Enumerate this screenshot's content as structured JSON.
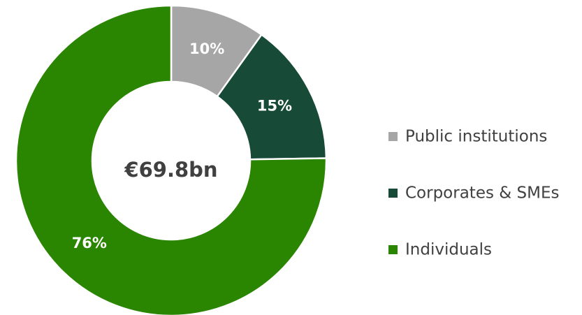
{
  "chart_data": {
    "type": "donut",
    "center_label": "€69.8bn",
    "categories": [
      "Public institutions",
      "Corporates & SMEs",
      "Individuals"
    ],
    "values": [
      10,
      15,
      76
    ],
    "value_labels": [
      "10%",
      "15%",
      "76%"
    ],
    "colors": [
      "#a6a6a6",
      "#174a37",
      "#2a8500"
    ],
    "legend": "right"
  }
}
